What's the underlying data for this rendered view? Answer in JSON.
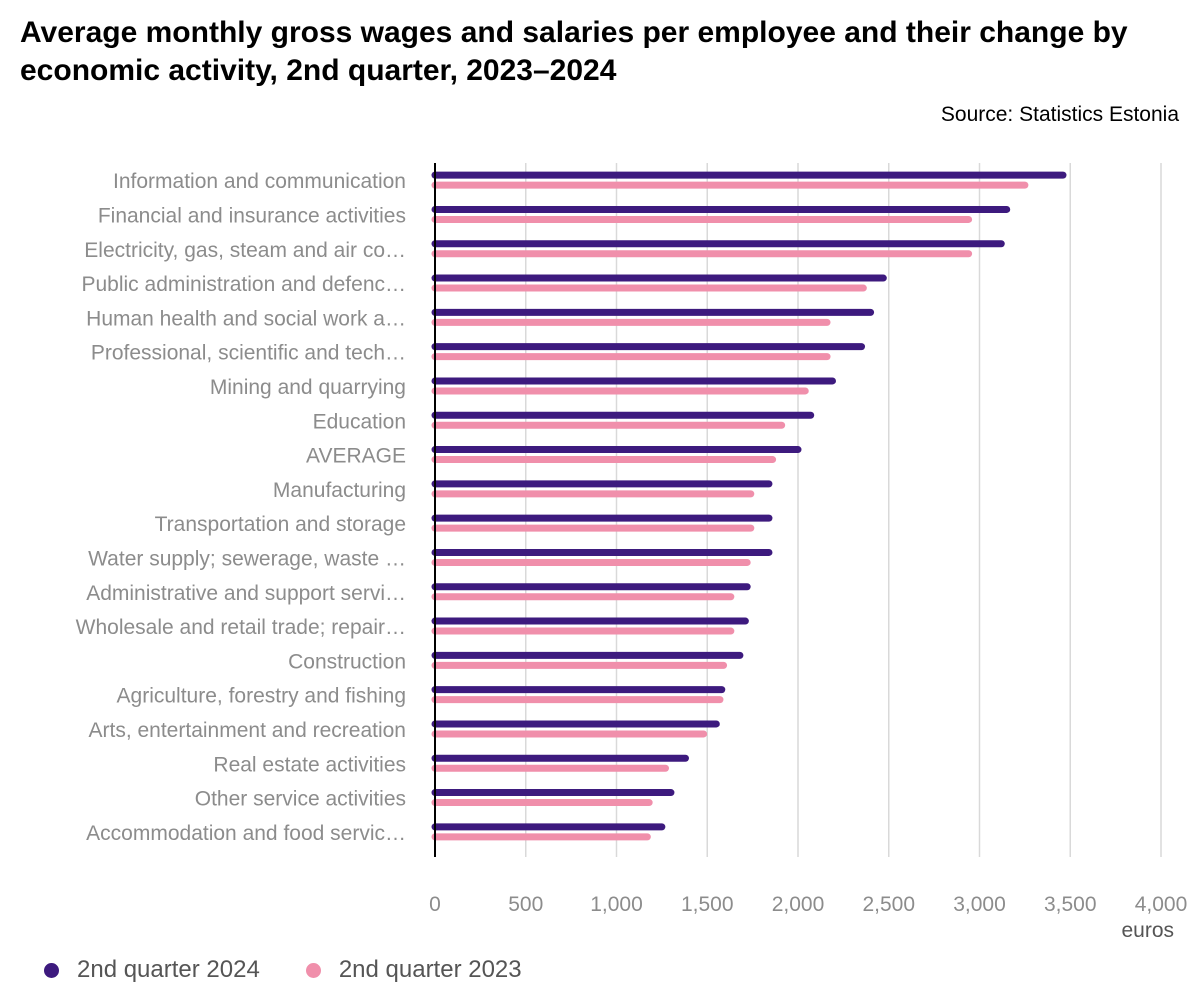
{
  "title": "Average monthly gross wages and salaries per employee and their change by economic activity, 2nd quarter, 2023–2024",
  "source": "Source: Statistics Estonia",
  "colors": {
    "series_2024": "#3d1a7e",
    "series_2023": "#f08fab",
    "grid": "#d9d9d9",
    "axis": "#000000",
    "label": "#8c8c8c"
  },
  "chart_data": {
    "type": "bar",
    "orientation": "horizontal",
    "categories": [
      "Information and communication",
      "Financial and insurance activities",
      "Electricity, gas, steam and air co…",
      "Public administration and defenc…",
      "Human health and social work a…",
      "Professional, scientific and tech…",
      "Mining and quarrying",
      "Education",
      "AVERAGE",
      "Manufacturing",
      "Transportation and storage",
      "Water supply; sewerage, waste …",
      "Administrative and support servi…",
      "Wholesale and retail trade; repair…",
      "Construction",
      "Agriculture, forestry and fishing",
      "Arts, entertainment and recreation",
      "Real estate activities",
      "Other service activities",
      "Accommodation and food servic…"
    ],
    "series": [
      {
        "name": "2nd quarter 2024",
        "values": [
          3460,
          3150,
          3120,
          2470,
          2400,
          2350,
          2190,
          2070,
          2000,
          1840,
          1840,
          1840,
          1720,
          1710,
          1680,
          1580,
          1550,
          1380,
          1300,
          1250
        ]
      },
      {
        "name": "2nd quarter 2023",
        "values": [
          3250,
          2940,
          2940,
          2360,
          2160,
          2160,
          2040,
          1910,
          1860,
          1740,
          1740,
          1720,
          1630,
          1630,
          1590,
          1570,
          1480,
          1270,
          1180,
          1170
        ]
      }
    ],
    "xlabel": "euros",
    "xlim": [
      0,
      4000
    ],
    "xticks": [
      0,
      500,
      1000,
      1500,
      2000,
      2500,
      3000,
      3500,
      4000
    ],
    "xtick_labels": [
      "0",
      "500",
      "1,000",
      "1,500",
      "2,000",
      "2,500",
      "3,000",
      "3,500",
      "4,000"
    ],
    "grid": true,
    "legend_position": "bottom-left"
  }
}
